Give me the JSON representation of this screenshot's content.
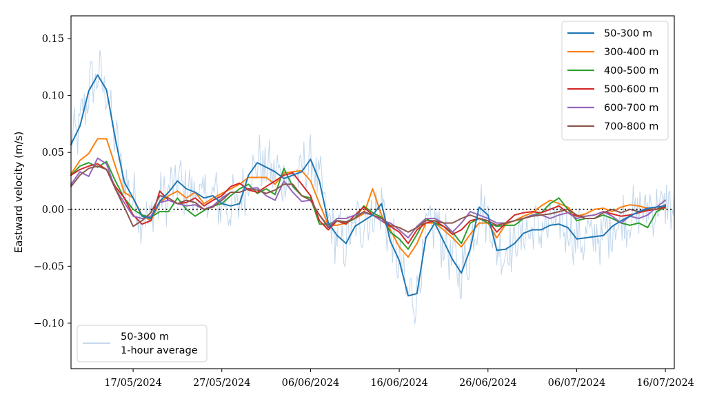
{
  "chart_data": {
    "type": "line",
    "ylabel": "Eastward velocity (m/s)",
    "xlabel": "",
    "ylim": [
      -0.14,
      0.17
    ],
    "xlim": [
      "2024-05-10",
      "2024-07-17"
    ],
    "y_ticks": [
      -0.1,
      -0.05,
      0.0,
      0.05,
      0.1,
      0.15
    ],
    "y_tick_labels": [
      "−0.10",
      "−0.05",
      "0.00",
      "0.05",
      "0.10",
      "0.15"
    ],
    "x_ticks": [
      "2024-05-17",
      "2024-05-27",
      "2024-06-06",
      "2024-06-16",
      "2024-06-26",
      "2024-07-06",
      "2024-07-16"
    ],
    "x_tick_labels": [
      "17/05/2024",
      "27/05/2024",
      "06/06/2024",
      "16/06/2024",
      "26/06/2024",
      "06/07/2024",
      "16/07/2024"
    ],
    "reference_line": 0,
    "grid": false,
    "x": [
      "2024-05-10",
      "2024-05-11",
      "2024-05-12",
      "2024-05-13",
      "2024-05-14",
      "2024-05-15",
      "2024-05-16",
      "2024-05-17",
      "2024-05-18",
      "2024-05-19",
      "2024-05-20",
      "2024-05-21",
      "2024-05-22",
      "2024-05-23",
      "2024-05-24",
      "2024-05-25",
      "2024-05-26",
      "2024-05-27",
      "2024-05-28",
      "2024-05-29",
      "2024-05-30",
      "2024-05-31",
      "2024-06-01",
      "2024-06-02",
      "2024-06-03",
      "2024-06-04",
      "2024-06-05",
      "2024-06-06",
      "2024-06-07",
      "2024-06-08",
      "2024-06-09",
      "2024-06-10",
      "2024-06-11",
      "2024-06-12",
      "2024-06-13",
      "2024-06-14",
      "2024-06-15",
      "2024-06-16",
      "2024-06-17",
      "2024-06-18",
      "2024-06-19",
      "2024-06-20",
      "2024-06-21",
      "2024-06-22",
      "2024-06-23",
      "2024-06-24",
      "2024-06-25",
      "2024-06-26",
      "2024-06-27",
      "2024-06-28",
      "2024-06-29",
      "2024-06-30",
      "2024-07-01",
      "2024-07-02",
      "2024-07-03",
      "2024-07-04",
      "2024-07-05",
      "2024-07-06",
      "2024-07-07",
      "2024-07-08",
      "2024-07-09",
      "2024-07-10",
      "2024-07-11",
      "2024-07-12",
      "2024-07-13",
      "2024-07-14",
      "2024-07-15",
      "2024-07-16"
    ],
    "series": [
      {
        "name": "50-300 m",
        "color": "#1f77b4",
        "values": [
          0.057,
          0.073,
          0.104,
          0.118,
          0.105,
          0.062,
          0.024,
          0.01,
          -0.006,
          -0.008,
          0.007,
          0.015,
          0.025,
          0.018,
          0.015,
          0.01,
          0.012,
          0.005,
          0.003,
          0.005,
          0.03,
          0.041,
          0.037,
          0.033,
          0.027,
          0.03,
          0.033,
          0.044,
          0.025,
          -0.012,
          -0.023,
          -0.03,
          -0.015,
          -0.01,
          -0.005,
          0.005,
          -0.028,
          -0.045,
          -0.076,
          -0.074,
          -0.025,
          -0.012,
          -0.028,
          -0.044,
          -0.056,
          -0.035,
          0.002,
          -0.005,
          -0.036,
          -0.035,
          -0.03,
          -0.021,
          -0.018,
          -0.018,
          -0.014,
          -0.013,
          -0.016,
          -0.026,
          -0.025,
          -0.024,
          -0.023,
          -0.015,
          -0.01,
          -0.006,
          -0.002,
          0.001,
          0.002,
          0.003
        ]
      },
      {
        "name": "300-400 m",
        "color": "#ff7f0e",
        "values": [
          0.031,
          0.043,
          0.049,
          0.062,
          0.062,
          0.038,
          0.015,
          0.01,
          -0.005,
          -0.01,
          0.006,
          0.012,
          0.016,
          0.01,
          0.015,
          0.005,
          0.01,
          0.014,
          0.018,
          0.022,
          0.028,
          0.028,
          0.028,
          0.022,
          0.032,
          0.033,
          0.034,
          0.025,
          0.005,
          -0.014,
          -0.014,
          -0.012,
          -0.008,
          -0.004,
          0.018,
          -0.005,
          -0.018,
          -0.033,
          -0.042,
          -0.03,
          -0.012,
          -0.012,
          -0.018,
          -0.025,
          -0.033,
          -0.022,
          -0.012,
          -0.012,
          -0.025,
          -0.013,
          -0.01,
          -0.006,
          -0.003,
          0.003,
          0.008,
          0.005,
          0.002,
          -0.006,
          -0.004,
          0.0,
          0.001,
          -0.002,
          0.002,
          0.004,
          0.003,
          0.001,
          0.0,
          0.001
        ]
      },
      {
        "name": "400-500 m",
        "color": "#2ca02c",
        "values": [
          0.03,
          0.038,
          0.041,
          0.037,
          0.042,
          0.025,
          0.01,
          0.0,
          -0.005,
          -0.007,
          -0.002,
          -0.002,
          0.01,
          0.0,
          -0.006,
          -0.001,
          0.003,
          0.005,
          0.012,
          0.018,
          0.022,
          0.014,
          0.018,
          0.013,
          0.036,
          0.02,
          0.012,
          0.01,
          -0.013,
          -0.013,
          -0.01,
          -0.012,
          -0.008,
          0.003,
          -0.003,
          -0.007,
          -0.02,
          -0.026,
          -0.035,
          -0.022,
          -0.008,
          -0.012,
          -0.015,
          -0.02,
          -0.03,
          -0.012,
          -0.008,
          -0.012,
          -0.015,
          -0.014,
          -0.014,
          -0.008,
          -0.005,
          -0.003,
          0.005,
          0.01,
          0.0,
          -0.01,
          -0.008,
          -0.008,
          -0.005,
          -0.008,
          -0.012,
          -0.014,
          -0.012,
          -0.016,
          -0.002,
          0.002
        ]
      },
      {
        "name": "500-600 m",
        "color": "#d62728",
        "values": [
          0.03,
          0.035,
          0.038,
          0.04,
          0.035,
          0.02,
          0.01,
          -0.005,
          -0.013,
          -0.01,
          0.016,
          0.008,
          0.005,
          0.006,
          0.01,
          0.003,
          0.008,
          0.012,
          0.02,
          0.023,
          0.017,
          0.015,
          0.02,
          0.025,
          0.03,
          0.032,
          0.022,
          0.012,
          -0.01,
          -0.018,
          -0.01,
          -0.013,
          -0.005,
          0.002,
          -0.005,
          -0.01,
          -0.015,
          -0.02,
          -0.03,
          -0.018,
          -0.012,
          -0.01,
          -0.015,
          -0.022,
          -0.018,
          -0.01,
          -0.008,
          -0.01,
          -0.02,
          -0.012,
          -0.005,
          -0.003,
          -0.002,
          -0.003,
          0.0,
          0.003,
          -0.003,
          -0.006,
          -0.006,
          -0.005,
          -0.002,
          -0.004,
          -0.006,
          -0.005,
          -0.003,
          -0.001,
          0.0,
          0.002
        ]
      },
      {
        "name": "600-700 m",
        "color": "#9467bd",
        "values": [
          0.022,
          0.033,
          0.029,
          0.045,
          0.04,
          0.018,
          0.006,
          -0.006,
          -0.008,
          -0.006,
          0.006,
          0.008,
          0.005,
          0.003,
          0.004,
          0.0,
          0.003,
          0.01,
          0.015,
          0.015,
          0.018,
          0.019,
          0.012,
          0.008,
          0.025,
          0.015,
          0.007,
          0.008,
          -0.005,
          -0.015,
          -0.008,
          -0.008,
          -0.005,
          -0.003,
          -0.005,
          -0.01,
          -0.012,
          -0.018,
          -0.025,
          -0.015,
          -0.008,
          -0.008,
          -0.012,
          -0.02,
          -0.012,
          -0.002,
          -0.005,
          -0.008,
          -0.012,
          -0.012,
          -0.01,
          -0.008,
          -0.005,
          -0.005,
          -0.008,
          -0.005,
          -0.003,
          -0.008,
          -0.006,
          -0.005,
          -0.002,
          -0.006,
          -0.012,
          -0.006,
          -0.008,
          -0.005,
          0.002,
          0.008
        ]
      },
      {
        "name": "700-800 m",
        "color": "#8c564b",
        "values": [
          0.02,
          0.03,
          0.036,
          0.038,
          0.035,
          0.018,
          0.002,
          -0.015,
          -0.01,
          -0.003,
          0.012,
          0.01,
          0.005,
          0.008,
          0.006,
          0.0,
          0.002,
          0.008,
          0.015,
          0.015,
          0.018,
          0.017,
          0.014,
          0.017,
          0.022,
          0.022,
          0.012,
          0.008,
          -0.005,
          -0.016,
          -0.01,
          -0.011,
          -0.008,
          -0.002,
          -0.005,
          -0.008,
          -0.014,
          -0.016,
          -0.02,
          -0.016,
          -0.01,
          -0.01,
          -0.012,
          -0.012,
          -0.008,
          -0.005,
          -0.008,
          -0.01,
          -0.014,
          -0.012,
          -0.01,
          -0.008,
          -0.006,
          -0.005,
          -0.004,
          -0.002,
          0.0,
          -0.005,
          -0.008,
          -0.008,
          -0.003,
          0.0,
          -0.003,
          0.0,
          -0.002,
          0.0,
          0.0,
          0.004
        ]
      }
    ],
    "hourly_series": {
      "name": "50-300 m\n1-hour average",
      "label_lines": [
        "50-300 m",
        "1-hour average"
      ],
      "color": "#c3d8ec",
      "based_on": "50-300 m"
    },
    "legends": [
      {
        "position": "top-right",
        "entries": [
          "50-300 m",
          "300-400 m",
          "400-500 m",
          "500-600 m",
          "600-700 m",
          "700-800 m"
        ]
      },
      {
        "position": "bottom-left",
        "entries": [
          "50-300 m\n1-hour average"
        ]
      }
    ]
  }
}
